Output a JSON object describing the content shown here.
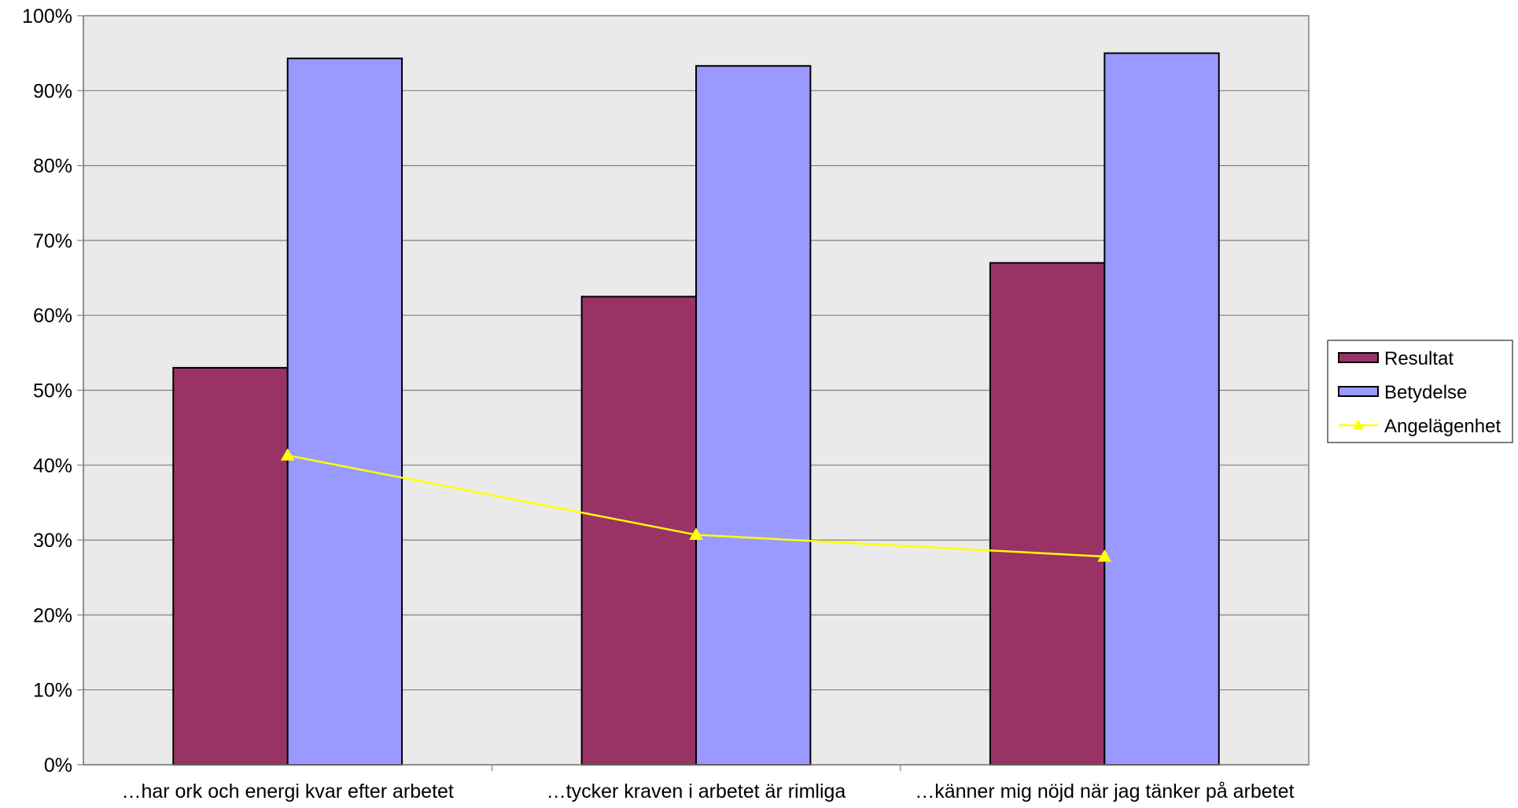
{
  "chart_data": {
    "type": "bar",
    "categories": [
      "…har ork och energi kvar efter arbetet",
      "…tycker kraven i arbetet är rimliga",
      "…känner mig nöjd när jag tänker på arbetet"
    ],
    "series": [
      {
        "name": "Resultat",
        "kind": "bar",
        "color": "#993366",
        "values": [
          53,
          62.5,
          67
        ]
      },
      {
        "name": "Betydelse",
        "kind": "bar",
        "color": "#9999FF",
        "values": [
          94.3,
          93.3,
          95
        ]
      },
      {
        "name": "Angelägenhet",
        "kind": "line",
        "color": "#FFFF00",
        "marker": "triangle",
        "values": [
          41.3,
          30.7,
          27.8
        ]
      }
    ],
    "ylim": [
      0,
      100
    ],
    "yticks": [
      "0%",
      "10%",
      "20%",
      "30%",
      "40%",
      "50%",
      "60%",
      "70%",
      "80%",
      "90%",
      "100%"
    ],
    "grid": true,
    "plot_background": "#EAEAEA",
    "legend_position": "right"
  }
}
